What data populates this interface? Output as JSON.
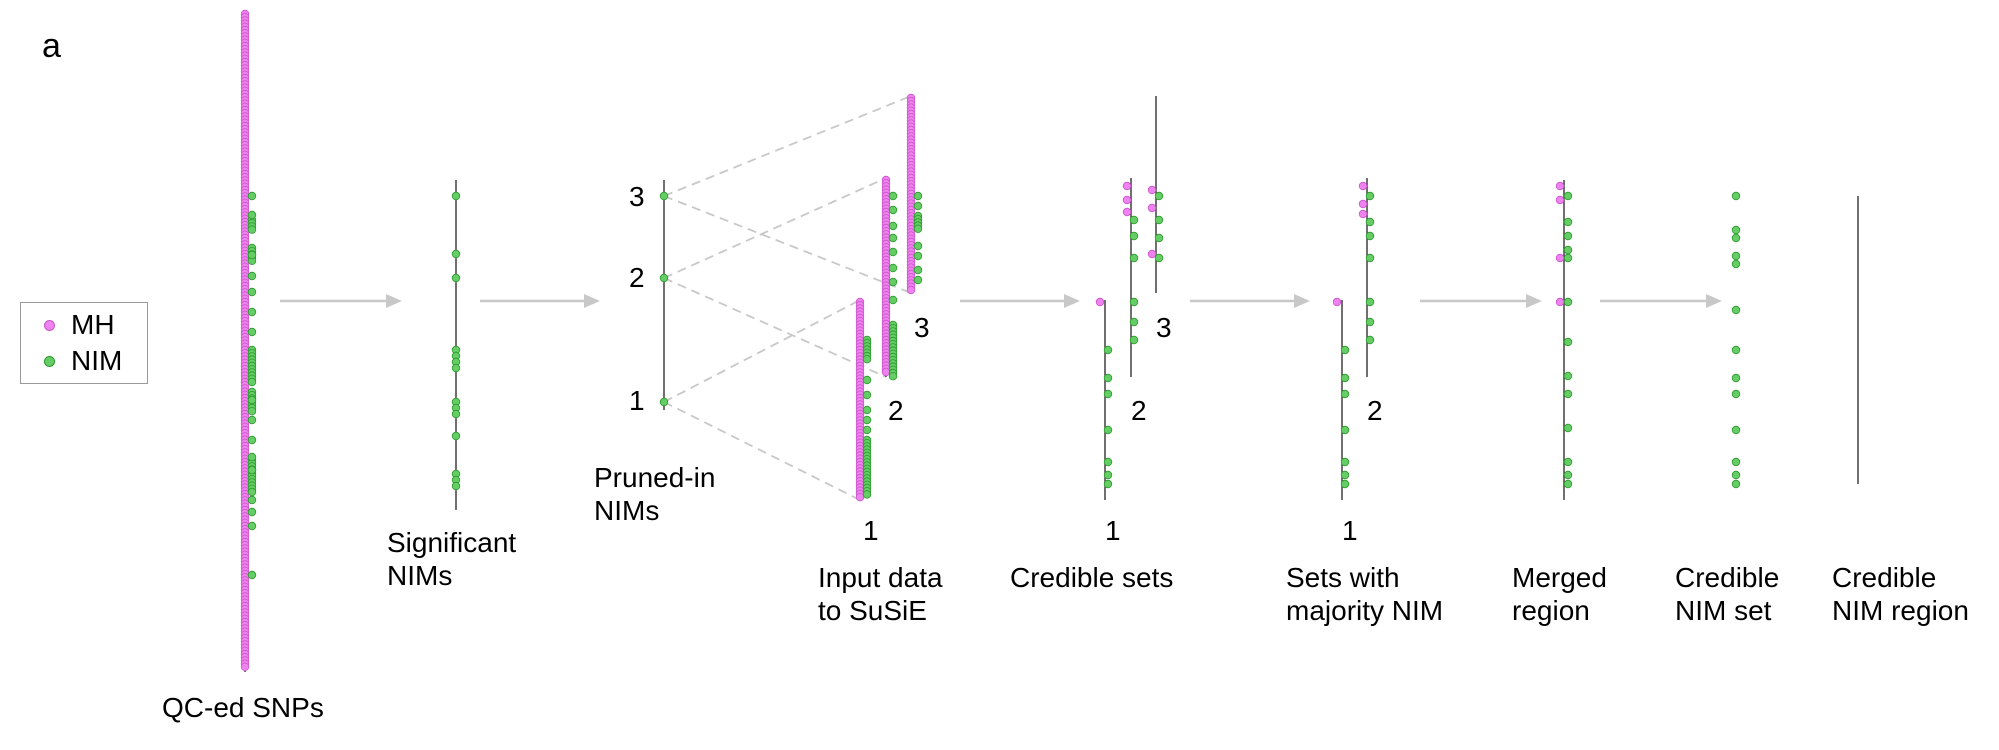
{
  "panel_letter": "a",
  "colors": {
    "mh": "#ee82ee",
    "mh_stroke": "#cc55cc",
    "nim": "#66cc66",
    "nim_stroke": "#2a9a2a",
    "arrow": "#c8c8c8",
    "dashed": "#c8c8c8",
    "axis": "#333333"
  },
  "legend": [
    {
      "name": "MH",
      "color": "#ee82ee"
    },
    {
      "name": "NIM",
      "color": "#66cc66"
    }
  ],
  "stages": [
    {
      "id": "qc",
      "label": "QC-ed SNPs"
    },
    {
      "id": "significant",
      "label": "Significant\nNIMs"
    },
    {
      "id": "pruned",
      "label": "Pruned-in\nNIMs"
    },
    {
      "id": "input",
      "label": "Input data\nto SuSiE"
    },
    {
      "id": "credible",
      "label": "Credible sets"
    },
    {
      "id": "majority",
      "label": "Sets with\nmajority NIM"
    },
    {
      "id": "merged",
      "label": "Merged\nregion"
    },
    {
      "id": "credset",
      "label": "Credible\nNIM set"
    },
    {
      "id": "credregion",
      "label": "Credible\nNIM region"
    }
  ],
  "pruned_numbers": [
    "3",
    "2",
    "1"
  ],
  "input_numbers": [
    "1",
    "2",
    "3"
  ],
  "credible_numbers": [
    "1",
    "2",
    "3"
  ],
  "majority_numbers": [
    "1",
    "2"
  ]
}
